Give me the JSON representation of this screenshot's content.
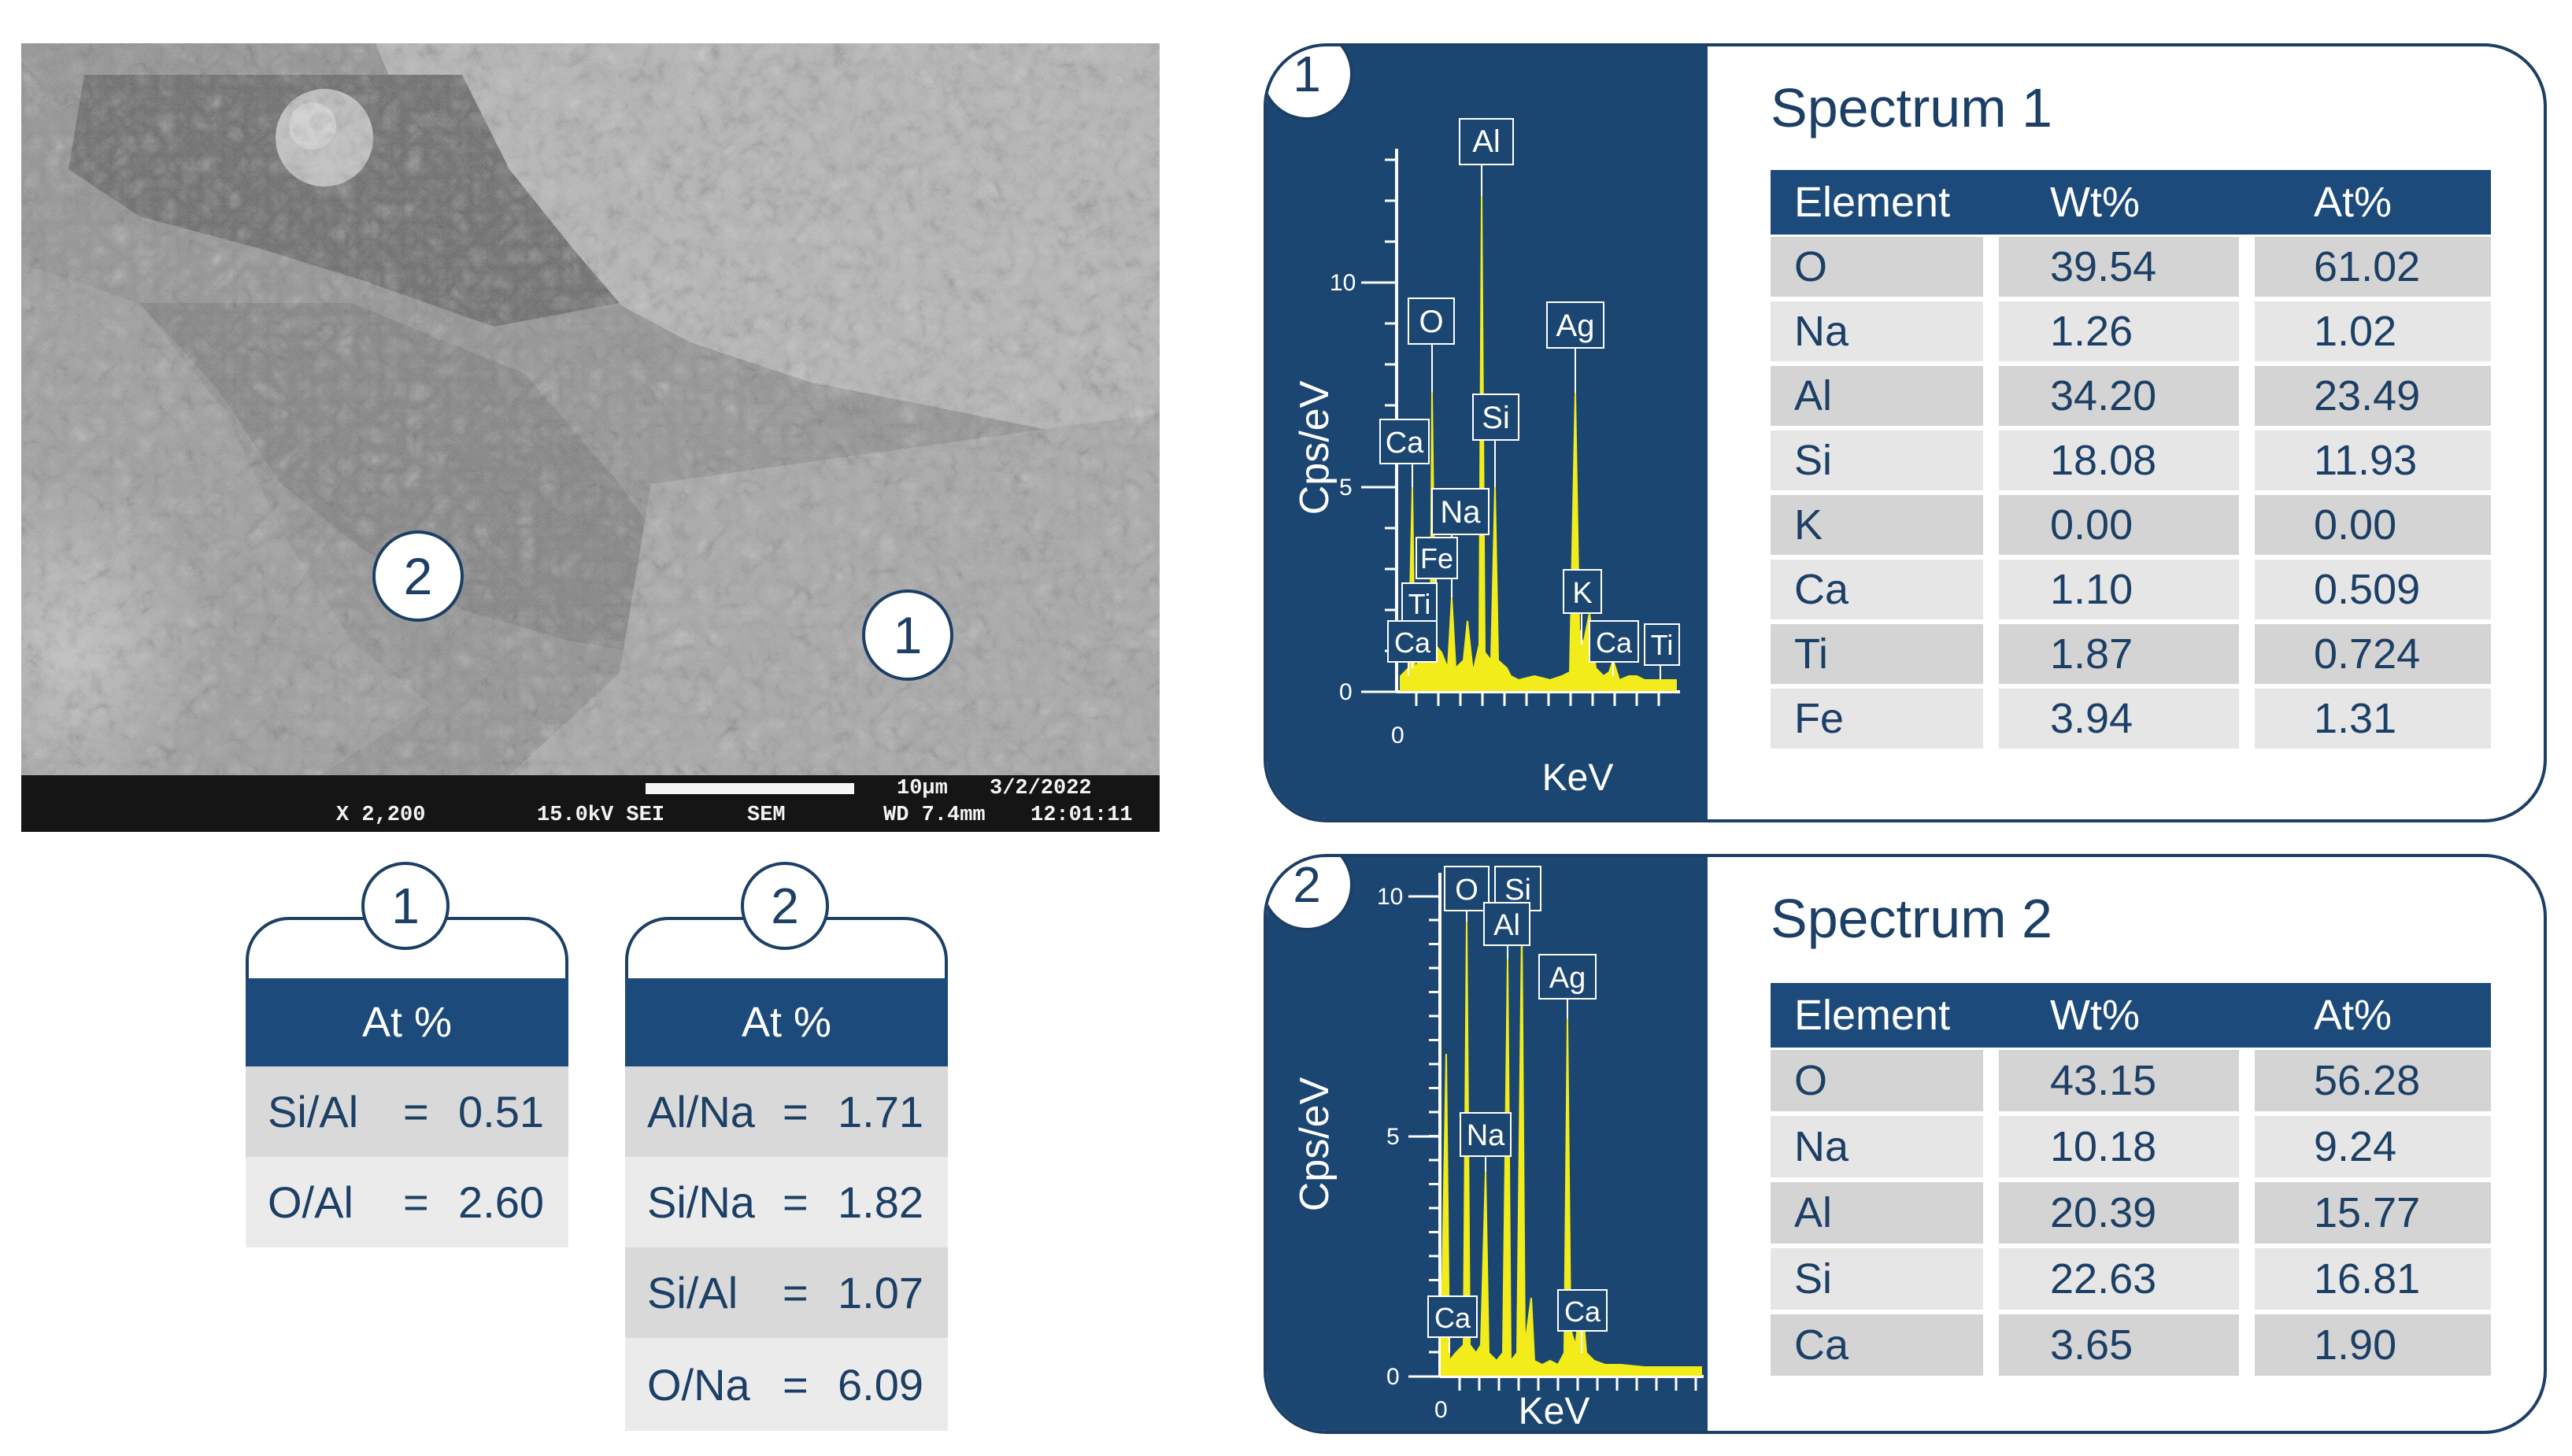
{
  "sem": {
    "markers": [
      "2",
      "1"
    ],
    "databar": {
      "mag": "X 2,200",
      "kv": "15.0kV SEI",
      "mode": "SEM",
      "scale": "10µm",
      "date": "3/2/2022",
      "wd": "WD 7.4mm",
      "time": "12:01:11"
    }
  },
  "ratio_tables": [
    {
      "badge": "1",
      "header": "At %",
      "rows": [
        {
          "label": "Si/Al",
          "eq": "=",
          "value": "0.51"
        },
        {
          "label": "O/Al",
          "eq": "=",
          "value": "2.60"
        }
      ]
    },
    {
      "badge": "2",
      "header": "At %",
      "rows": [
        {
          "label": "Al/Na",
          "eq": "=",
          "value": "1.71"
        },
        {
          "label": "Si/Na",
          "eq": "=",
          "value": "1.82"
        },
        {
          "label": "Si/Al",
          "eq": "=",
          "value": "1.07"
        },
        {
          "label": "O/Na",
          "eq": "=",
          "value": "6.09"
        }
      ]
    }
  ],
  "spectra": [
    {
      "badge": "1",
      "title": "Spectrum 1",
      "headers": [
        "Element",
        "Wt%",
        "At%"
      ],
      "rows": [
        [
          "O",
          "39.54",
          "61.02"
        ],
        [
          "Na",
          "1.26",
          "1.02"
        ],
        [
          "Al",
          "34.20",
          "23.49"
        ],
        [
          "Si",
          "18.08",
          "11.93"
        ],
        [
          "K",
          "0.00",
          "0.00"
        ],
        [
          "Ca",
          "1.10",
          "0.509"
        ],
        [
          "Ti",
          "1.87",
          "0.724"
        ],
        [
          "Fe",
          "3.94",
          "1.31"
        ]
      ],
      "chart": {
        "ylabel": "Cps/eV",
        "xlabel": "KeV",
        "yticks": [
          "10",
          "5",
          "0"
        ],
        "xtick": "0",
        "peak_labels": [
          "Al",
          "O",
          "Ag",
          "Si",
          "Ca",
          "Na",
          "Fe",
          "Ti",
          "K",
          "Ca",
          "Ca",
          "Ti"
        ]
      }
    },
    {
      "badge": "2",
      "title": "Spectrum 2",
      "headers": [
        "Element",
        "Wt%",
        "At%"
      ],
      "rows": [
        [
          "O",
          "43.15",
          "56.28"
        ],
        [
          "Na",
          "10.18",
          "9.24"
        ],
        [
          "Al",
          "20.39",
          "15.77"
        ],
        [
          "Si",
          "22.63",
          "16.81"
        ],
        [
          "Ca",
          "3.65",
          "1.90"
        ]
      ],
      "chart": {
        "ylabel": "Cps/eV",
        "xlabel": "KeV",
        "yticks": [
          "10",
          "5",
          "0"
        ],
        "xtick": "0",
        "peak_labels": [
          "O",
          "Si",
          "Al",
          "Ag",
          "Na",
          "Ca",
          "Ca"
        ]
      }
    }
  ],
  "colors": {
    "navy": "#1c4a7a",
    "panel": "#1b4672",
    "peak": "#f2ec1a",
    "row_dark": "#d4d4d4",
    "row_light": "#e6e6e6"
  }
}
